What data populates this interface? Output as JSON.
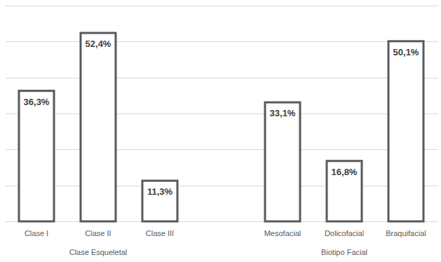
{
  "chart_data": [
    {
      "type": "bar",
      "xlabel": "Clase Esqueletal",
      "categories": [
        "Clase I",
        "Clase II",
        "Clase III"
      ],
      "values": [
        36.3,
        52.4,
        11.3
      ],
      "value_labels": [
        "36,3%",
        "52,4%",
        "11,3%"
      ],
      "color": "#595959",
      "ylim": [
        0,
        60
      ],
      "yticks": [
        0,
        10,
        20,
        30,
        40,
        50,
        60
      ],
      "grid": true,
      "tick_labels": "x",
      "data_labels": true
    },
    {
      "type": "bar",
      "xlabel": "Biotipo Facial",
      "categories": [
        "Mesofacial",
        "Dolicofacial",
        "Braquifacial"
      ],
      "values": [
        33.1,
        16.8,
        50.1
      ],
      "value_labels": [
        "33,1%",
        "16,8%",
        "50,1%"
      ],
      "color": "#595959",
      "ylim": [
        0,
        60
      ],
      "yticks": [
        0,
        10,
        20,
        30,
        40,
        50,
        60
      ],
      "grid": true,
      "tick_labels": "x",
      "data_labels": true
    }
  ]
}
